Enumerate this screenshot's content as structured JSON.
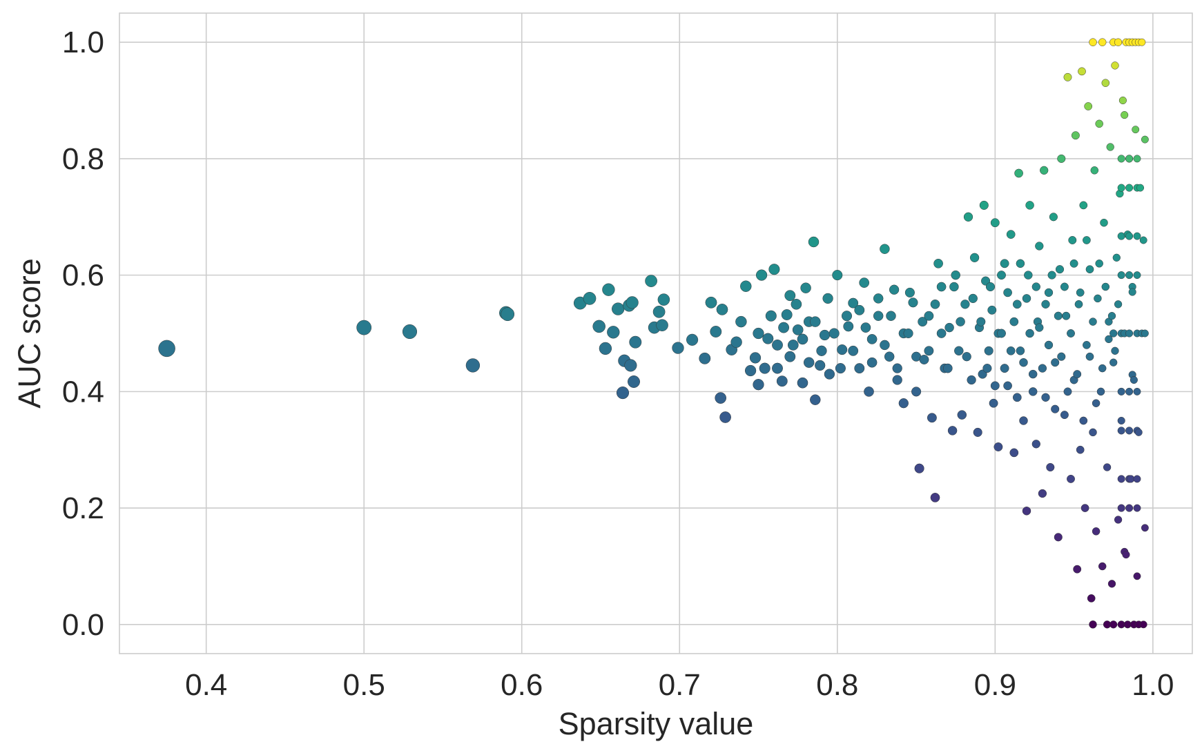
{
  "chart_data": {
    "type": "scatter",
    "title": "",
    "xlabel": "Sparsity value",
    "ylabel": "AUC score",
    "xlim": [
      0.345,
      1.025
    ],
    "ylim": [
      -0.05,
      1.05
    ],
    "grid": true,
    "color_scale": "viridis mapped to AUC score (0.0 purple to 1.0 yellow)",
    "marker_size_note": "marker size decreases as sparsity increases",
    "x_ticks": [
      0.4,
      0.5,
      0.6,
      0.7,
      0.8,
      0.9,
      1.0
    ],
    "x_tick_labels": [
      "0.4",
      "0.5",
      "0.6",
      "0.7",
      "0.8",
      "0.9",
      "1.0"
    ],
    "y_ticks": [
      0.0,
      0.2,
      0.4,
      0.6,
      0.8,
      1.0
    ],
    "y_tick_labels": [
      "0.0",
      "0.2",
      "0.4",
      "0.6",
      "0.8",
      "1.0"
    ],
    "colors": {
      "grid": "#cccccc",
      "axes_edge": "#cccccc",
      "text": "#262626",
      "marker_edge": "#333333"
    },
    "points": [
      [
        0.375,
        0.474
      ],
      [
        0.5,
        0.51
      ],
      [
        0.529,
        0.503
      ],
      [
        0.569,
        0.445
      ],
      [
        0.59,
        0.535
      ],
      [
        0.591,
        0.533
      ],
      [
        0.637,
        0.552
      ],
      [
        0.643,
        0.56
      ],
      [
        0.649,
        0.512
      ],
      [
        0.653,
        0.474
      ],
      [
        0.655,
        0.575
      ],
      [
        0.658,
        0.502
      ],
      [
        0.661,
        0.542
      ],
      [
        0.664,
        0.398
      ],
      [
        0.665,
        0.453
      ],
      [
        0.668,
        0.548
      ],
      [
        0.669,
        0.445
      ],
      [
        0.67,
        0.553
      ],
      [
        0.671,
        0.417
      ],
      [
        0.672,
        0.485
      ],
      [
        0.682,
        0.59
      ],
      [
        0.684,
        0.51
      ],
      [
        0.687,
        0.537
      ],
      [
        0.689,
        0.514
      ],
      [
        0.69,
        0.558
      ],
      [
        0.699,
        0.475
      ],
      [
        0.708,
        0.489
      ],
      [
        0.716,
        0.457
      ],
      [
        0.72,
        0.553
      ],
      [
        0.723,
        0.503
      ],
      [
        0.726,
        0.389
      ],
      [
        0.727,
        0.541
      ],
      [
        0.729,
        0.356
      ],
      [
        0.733,
        0.472
      ],
      [
        0.736,
        0.485
      ],
      [
        0.739,
        0.52
      ],
      [
        0.742,
        0.581
      ],
      [
        0.745,
        0.436
      ],
      [
        0.748,
        0.458
      ],
      [
        0.75,
        0.412
      ],
      [
        0.752,
        0.6
      ],
      [
        0.756,
        0.491
      ],
      [
        0.76,
        0.61
      ],
      [
        0.762,
        0.44
      ],
      [
        0.765,
        0.418
      ],
      [
        0.768,
        0.532
      ],
      [
        0.77,
        0.565
      ],
      [
        0.772,
        0.48
      ],
      [
        0.775,
        0.506
      ],
      [
        0.778,
        0.415
      ],
      [
        0.78,
        0.578
      ],
      [
        0.782,
        0.52
      ],
      [
        0.785,
        0.657
      ],
      [
        0.786,
        0.386
      ],
      [
        0.789,
        0.445
      ],
      [
        0.792,
        0.497
      ],
      [
        0.795,
        0.43
      ],
      [
        0.8,
        0.6
      ],
      [
        0.803,
        0.472
      ],
      [
        0.807,
        0.512
      ],
      [
        0.81,
        0.552
      ],
      [
        0.814,
        0.44
      ],
      [
        0.817,
        0.587
      ],
      [
        0.82,
        0.4
      ],
      [
        0.822,
        0.49
      ],
      [
        0.826,
        0.53
      ],
      [
        0.83,
        0.645
      ],
      [
        0.833,
        0.46
      ],
      [
        0.836,
        0.575
      ],
      [
        0.838,
        0.42
      ],
      [
        0.842,
        0.38
      ],
      [
        0.845,
        0.5
      ],
      [
        0.848,
        0.553
      ],
      [
        0.85,
        0.4
      ],
      [
        0.852,
        0.268
      ],
      [
        0.855,
        0.455
      ],
      [
        0.858,
        0.53
      ],
      [
        0.86,
        0.355
      ],
      [
        0.862,
        0.218
      ],
      [
        0.864,
        0.62
      ],
      [
        0.866,
        0.58
      ],
      [
        0.868,
        0.44
      ],
      [
        0.871,
        0.51
      ],
      [
        0.873,
        0.333
      ],
      [
        0.875,
        0.6
      ],
      [
        0.877,
        0.47
      ],
      [
        0.879,
        0.36
      ],
      [
        0.881,
        0.55
      ],
      [
        0.883,
        0.7
      ],
      [
        0.885,
        0.42
      ],
      [
        0.887,
        0.63
      ],
      [
        0.889,
        0.33
      ],
      [
        0.891,
        0.52
      ],
      [
        0.893,
        0.72
      ],
      [
        0.895,
        0.44
      ],
      [
        0.897,
        0.58
      ],
      [
        0.899,
        0.38
      ],
      [
        0.9,
        0.69
      ],
      [
        0.902,
        0.305
      ],
      [
        0.904,
        0.5
      ],
      [
        0.906,
        0.62
      ],
      [
        0.908,
        0.41
      ],
      [
        0.91,
        0.67
      ],
      [
        0.912,
        0.295
      ],
      [
        0.914,
        0.55
      ],
      [
        0.915,
        0.775
      ],
      [
        0.916,
        0.47
      ],
      [
        0.918,
        0.35
      ],
      [
        0.92,
        0.195
      ],
      [
        0.921,
        0.6
      ],
      [
        0.922,
        0.72
      ],
      [
        0.924,
        0.43
      ],
      [
        0.926,
        0.31
      ],
      [
        0.927,
        0.52
      ],
      [
        0.928,
        0.65
      ],
      [
        0.93,
        0.225
      ],
      [
        0.931,
        0.78
      ],
      [
        0.932,
        0.39
      ],
      [
        0.934,
        0.57
      ],
      [
        0.935,
        0.27
      ],
      [
        0.937,
        0.7
      ],
      [
        0.938,
        0.45
      ],
      [
        0.94,
        0.15
      ],
      [
        0.941,
        0.61
      ],
      [
        0.942,
        0.8
      ],
      [
        0.944,
        0.36
      ],
      [
        0.945,
        0.53
      ],
      [
        0.946,
        0.94
      ],
      [
        0.948,
        0.25
      ],
      [
        0.949,
        0.66
      ],
      [
        0.95,
        0.42
      ],
      [
        0.951,
        0.84
      ],
      [
        0.952,
        0.095
      ],
      [
        0.953,
        0.55
      ],
      [
        0.954,
        0.3
      ],
      [
        0.955,
        0.95
      ],
      [
        0.956,
        0.72
      ],
      [
        0.957,
        0.2
      ],
      [
        0.958,
        0.48
      ],
      [
        0.959,
        0.89
      ],
      [
        0.96,
        0.61
      ],
      [
        0.961,
        0.045
      ],
      [
        0.962,
        0.33
      ],
      [
        0.963,
        0.78
      ],
      [
        0.964,
        0.16
      ],
      [
        0.965,
        0.56
      ],
      [
        0.966,
        0.86
      ],
      [
        0.967,
        0.4
      ],
      [
        0.968,
        0.1
      ],
      [
        0.969,
        0.69
      ],
      [
        0.97,
        0.93
      ],
      [
        0.971,
        0.27
      ],
      [
        0.972,
        0.52
      ],
      [
        0.973,
        0.82
      ],
      [
        0.974,
        0.07
      ],
      [
        0.975,
        0.45
      ],
      [
        0.976,
        0.96
      ],
      [
        0.977,
        0.63
      ],
      [
        0.978,
        0.18
      ],
      [
        0.979,
        0.74
      ],
      [
        0.98,
        0.35
      ],
      [
        0.981,
        0.9
      ],
      [
        0.982,
        0.5
      ],
      [
        0.983,
        0.12
      ],
      [
        0.984,
        0.67
      ],
      [
        0.985,
        0.8
      ],
      [
        0.986,
        0.25
      ],
      [
        0.987,
        0.58
      ],
      [
        0.988,
        0.42
      ],
      [
        0.989,
        0.85
      ],
      [
        0.99,
        0.083
      ],
      [
        0.991,
        0.33
      ],
      [
        0.992,
        0.75
      ],
      [
        0.993,
        0.5
      ],
      [
        0.994,
        0.66
      ],
      [
        0.995,
        0.833
      ],
      [
        0.995,
        0.166
      ],
      [
        0.983,
        1.0
      ],
      [
        0.985,
        1.0
      ],
      [
        0.987,
        1.0
      ],
      [
        0.989,
        1.0
      ],
      [
        0.991,
        1.0
      ],
      [
        0.975,
        1.0
      ],
      [
        0.978,
        1.0
      ],
      [
        0.962,
        1.0
      ],
      [
        0.968,
        1.0
      ],
      [
        0.993,
        1.0
      ],
      [
        0.962,
        0.0
      ],
      [
        0.971,
        0.0
      ],
      [
        0.975,
        0.0
      ],
      [
        0.98,
        0.0
      ],
      [
        0.984,
        0.0
      ],
      [
        0.988,
        0.0
      ],
      [
        0.991,
        0.0
      ],
      [
        0.994,
        0.0
      ],
      [
        0.975,
        0.5
      ],
      [
        0.98,
        0.5
      ],
      [
        0.985,
        0.5
      ],
      [
        0.99,
        0.5
      ],
      [
        0.995,
        0.5
      ],
      [
        0.98,
        0.333
      ],
      [
        0.985,
        0.333
      ],
      [
        0.99,
        0.333
      ],
      [
        0.98,
        0.667
      ],
      [
        0.985,
        0.667
      ],
      [
        0.99,
        0.667
      ],
      [
        0.98,
        0.25
      ],
      [
        0.985,
        0.25
      ],
      [
        0.99,
        0.25
      ],
      [
        0.98,
        0.75
      ],
      [
        0.985,
        0.75
      ],
      [
        0.99,
        0.75
      ],
      [
        0.98,
        0.2
      ],
      [
        0.985,
        0.2
      ],
      [
        0.99,
        0.2
      ],
      [
        0.98,
        0.8
      ],
      [
        0.985,
        0.8
      ],
      [
        0.99,
        0.8
      ],
      [
        0.98,
        0.6
      ],
      [
        0.985,
        0.6
      ],
      [
        0.99,
        0.6
      ],
      [
        0.98,
        0.4
      ],
      [
        0.985,
        0.4
      ],
      [
        0.99,
        0.4
      ],
      [
        0.982,
        0.875
      ],
      [
        0.982,
        0.125
      ],
      [
        0.987,
        0.571
      ],
      [
        0.987,
        0.429
      ],
      [
        0.978,
        0.55
      ],
      [
        0.976,
        0.47
      ],
      [
        0.974,
        0.53
      ],
      [
        0.972,
        0.49
      ],
      [
        0.97,
        0.58
      ],
      [
        0.968,
        0.44
      ],
      [
        0.966,
        0.62
      ],
      [
        0.964,
        0.38
      ],
      [
        0.962,
        0.52
      ],
      [
        0.96,
        0.46
      ],
      [
        0.958,
        0.66
      ],
      [
        0.956,
        0.35
      ],
      [
        0.954,
        0.57
      ],
      [
        0.952,
        0.43
      ],
      [
        0.95,
        0.62
      ],
      [
        0.948,
        0.5
      ],
      [
        0.946,
        0.4
      ],
      [
        0.944,
        0.58
      ],
      [
        0.942,
        0.46
      ],
      [
        0.94,
        0.53
      ],
      [
        0.938,
        0.37
      ],
      [
        0.936,
        0.6
      ],
      [
        0.934,
        0.48
      ],
      [
        0.932,
        0.55
      ],
      [
        0.93,
        0.44
      ],
      [
        0.928,
        0.51
      ],
      [
        0.926,
        0.58
      ],
      [
        0.924,
        0.4
      ],
      [
        0.922,
        0.5
      ],
      [
        0.92,
        0.56
      ],
      [
        0.918,
        0.45
      ],
      [
        0.916,
        0.62
      ],
      [
        0.914,
        0.39
      ],
      [
        0.912,
        0.52
      ],
      [
        0.91,
        0.47
      ],
      [
        0.908,
        0.57
      ],
      [
        0.906,
        0.44
      ],
      [
        0.904,
        0.6
      ],
      [
        0.902,
        0.5
      ],
      [
        0.9,
        0.41
      ],
      [
        0.898,
        0.54
      ],
      [
        0.896,
        0.47
      ],
      [
        0.894,
        0.59
      ],
      [
        0.892,
        0.43
      ],
      [
        0.89,
        0.51
      ],
      [
        0.886,
        0.56
      ],
      [
        0.882,
        0.46
      ],
      [
        0.878,
        0.52
      ],
      [
        0.874,
        0.58
      ],
      [
        0.87,
        0.44
      ],
      [
        0.866,
        0.5
      ],
      [
        0.862,
        0.55
      ],
      [
        0.858,
        0.47
      ],
      [
        0.854,
        0.52
      ],
      [
        0.85,
        0.46
      ],
      [
        0.846,
        0.57
      ],
      [
        0.842,
        0.5
      ],
      [
        0.838,
        0.44
      ],
      [
        0.834,
        0.53
      ],
      [
        0.83,
        0.48
      ],
      [
        0.826,
        0.56
      ],
      [
        0.822,
        0.45
      ],
      [
        0.818,
        0.51
      ],
      [
        0.814,
        0.54
      ],
      [
        0.81,
        0.47
      ],
      [
        0.806,
        0.53
      ],
      [
        0.802,
        0.44
      ],
      [
        0.798,
        0.5
      ],
      [
        0.794,
        0.56
      ],
      [
        0.79,
        0.47
      ],
      [
        0.786,
        0.52
      ],
      [
        0.782,
        0.45
      ],
      [
        0.778,
        0.49
      ],
      [
        0.774,
        0.55
      ],
      [
        0.77,
        0.46
      ],
      [
        0.766,
        0.51
      ],
      [
        0.762,
        0.48
      ],
      [
        0.758,
        0.53
      ],
      [
        0.754,
        0.44
      ],
      [
        0.75,
        0.5
      ]
    ]
  }
}
